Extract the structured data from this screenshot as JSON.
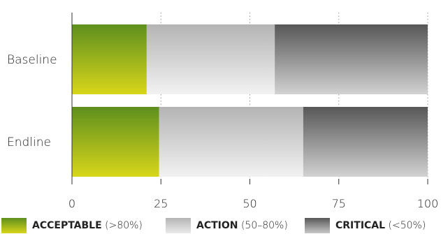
{
  "chart_data": {
    "type": "bar",
    "orientation": "horizontal",
    "stacked": true,
    "categories": [
      "Baseline",
      "Endline"
    ],
    "series": [
      {
        "name": "ACCEPTABLE",
        "values": [
          21,
          24.5
        ],
        "color": "#6a9a1a"
      },
      {
        "name": "ACTION",
        "values": [
          36,
          40.5
        ],
        "color": "#bdbdbd"
      },
      {
        "name": "CRITICAL",
        "values": [
          43,
          35
        ],
        "color": "#5f5f5f"
      }
    ],
    "xticks": [
      "0",
      "25",
      "50",
      "75",
      "100"
    ],
    "xlim": [
      0,
      100
    ],
    "grid": "vertical dotted",
    "legend_position": "bottom"
  },
  "legend": [
    {
      "label": "ACCEPTABLE",
      "range": "(>80%)"
    },
    {
      "label": "ACTION",
      "range": "(50–80%)"
    },
    {
      "label": "CRITICAL",
      "range": "(<50%)"
    }
  ]
}
